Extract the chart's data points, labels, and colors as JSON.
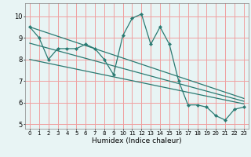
{
  "xlabel": "Humidex (Indice chaleur)",
  "background_color": "#e8f4f4",
  "grid_color": "#f0a0a0",
  "line_color": "#2a7a72",
  "xlim": [
    -0.5,
    23.5
  ],
  "ylim": [
    4.8,
    10.6
  ],
  "yticks": [
    5,
    6,
    7,
    8,
    9,
    10
  ],
  "xticks": [
    0,
    1,
    2,
    3,
    4,
    5,
    6,
    7,
    8,
    9,
    10,
    11,
    12,
    13,
    14,
    15,
    16,
    17,
    18,
    19,
    20,
    21,
    22,
    23
  ],
  "main_x": [
    0,
    1,
    2,
    3,
    4,
    5,
    6,
    7,
    8,
    9,
    10,
    11,
    12,
    13,
    14,
    15,
    16,
    17,
    18,
    19,
    20,
    21,
    22,
    23
  ],
  "main_y": [
    9.5,
    9.0,
    8.0,
    8.5,
    8.5,
    8.5,
    8.7,
    8.5,
    8.0,
    7.3,
    9.1,
    9.9,
    10.1,
    8.7,
    9.5,
    8.7,
    7.0,
    5.9,
    5.9,
    5.8,
    5.4,
    5.2,
    5.7,
    5.8
  ],
  "upper_line_x": [
    0,
    23
  ],
  "upper_line_y": [
    9.5,
    6.2
  ],
  "lower_line_x": [
    0,
    23
  ],
  "lower_line_y": [
    8.0,
    5.95
  ],
  "mid_line_x": [
    0,
    23
  ],
  "mid_line_y": [
    8.75,
    6.07
  ]
}
